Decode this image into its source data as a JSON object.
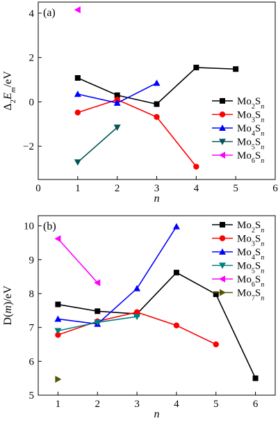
{
  "chart_data": [
    {
      "type": "line",
      "panel_label": "(a)",
      "ylabel": {
        "pre": "Δ",
        "sub1": "2",
        "mid": "E",
        "sub2": "m",
        "post": "/eV"
      },
      "xlabel": "n",
      "xlim": [
        0,
        6
      ],
      "ylim": [
        -3.5,
        4.5
      ],
      "xticks": [
        0,
        1,
        2,
        3,
        4,
        5,
        6
      ],
      "yticks": [
        -2,
        0,
        2,
        4
      ],
      "xtick_labels": [
        "0",
        "1",
        "2",
        "3",
        "4",
        "5",
        "6"
      ],
      "ytick_labels": [
        "−2",
        "0",
        "2",
        "4"
      ],
      "legend_placement": "center-right",
      "series": [
        {
          "name": "Mo2Sn",
          "color": "#000000",
          "marker": "square",
          "x": [
            1,
            2,
            3,
            4,
            5
          ],
          "y": [
            1.08,
            0.3,
            -0.1,
            1.55,
            1.48
          ]
        },
        {
          "name": "Mo3Sn",
          "color": "#ff0000",
          "marker": "circle",
          "x": [
            1,
            2,
            3,
            4
          ],
          "y": [
            -0.48,
            0.1,
            -0.68,
            -2.92
          ]
        },
        {
          "name": "Mo4Sn",
          "color": "#0000ff",
          "marker": "triangle-up",
          "x": [
            1,
            2,
            3
          ],
          "y": [
            0.35,
            -0.05,
            0.85
          ]
        },
        {
          "name": "Mo5Sn",
          "color": "#005555",
          "marker": "triangle-down",
          "x": [
            1,
            2
          ],
          "y": [
            -2.72,
            -1.15
          ]
        },
        {
          "name": "Mo6Sn",
          "color": "#ff00ff",
          "marker": "triangle-left",
          "x": [
            1
          ],
          "y": [
            4.15
          ]
        }
      ],
      "legend": [
        {
          "base": "Mo",
          "sub": "2",
          "mid": "S",
          "sub2": "n"
        },
        {
          "base": "Mo",
          "sub": "3",
          "mid": "S",
          "sub2": "n"
        },
        {
          "base": "Mo",
          "sub": "4",
          "mid": "S",
          "sub2": "n"
        },
        {
          "base": "Mo",
          "sub": "5",
          "mid": "S",
          "sub2": "n"
        },
        {
          "base": "Mo",
          "sub": "6",
          "mid": "S",
          "sub2": "n"
        }
      ]
    },
    {
      "type": "line",
      "panel_label": "(b)",
      "ylabel": {
        "pre": "D(",
        "mid": "m",
        "post": ")/eV"
      },
      "xlabel": "n",
      "xlim": [
        0.5,
        6.5
      ],
      "ylim": [
        5,
        10.3
      ],
      "xticks": [
        1,
        2,
        3,
        4,
        5,
        6
      ],
      "yticks": [
        5,
        6,
        7,
        8,
        9,
        10
      ],
      "xtick_labels": [
        "1",
        "2",
        "3",
        "4",
        "5",
        "6"
      ],
      "ytick_labels": [
        "5",
        "6",
        "7",
        "8",
        "9",
        "10"
      ],
      "legend_placement": "top-right",
      "series": [
        {
          "name": "Mo2Sn",
          "color": "#000000",
          "marker": "square",
          "x": [
            1,
            2,
            3,
            4,
            5,
            6
          ],
          "y": [
            7.68,
            7.48,
            7.4,
            8.62,
            7.98,
            5.5
          ]
        },
        {
          "name": "Mo3Sn",
          "color": "#ff0000",
          "marker": "circle",
          "x": [
            1,
            2,
            3,
            4,
            5
          ],
          "y": [
            6.78,
            7.18,
            7.45,
            7.06,
            6.5
          ]
        },
        {
          "name": "Mo4Sn",
          "color": "#0000ff",
          "marker": "triangle-up",
          "x": [
            1,
            2,
            3,
            4
          ],
          "y": [
            7.25,
            7.1,
            8.15,
            9.98
          ]
        },
        {
          "name": "Mo5Sn",
          "color": "#008080",
          "marker": "triangle-down",
          "x": [
            1,
            2,
            3
          ],
          "y": [
            6.9,
            7.15,
            7.32
          ]
        },
        {
          "name": "Mo6Sn",
          "color": "#ff00ff",
          "marker": "triangle-left",
          "x": [
            1,
            2
          ],
          "y": [
            9.62,
            8.32
          ]
        },
        {
          "name": "Mo7Sn",
          "color": "#555500",
          "marker": "triangle-right",
          "x": [
            1
          ],
          "y": [
            5.47
          ]
        }
      ],
      "legend": [
        {
          "base": "Mo",
          "sub": "2",
          "mid": "S",
          "sub2": "n"
        },
        {
          "base": "Mo",
          "sub": "3",
          "mid": "S",
          "sub2": "n"
        },
        {
          "base": "Mo",
          "sub": "4",
          "mid": "S",
          "sub2": "n"
        },
        {
          "base": "Mo",
          "sub": "5",
          "mid": "S",
          "sub2": "n"
        },
        {
          "base": "Mo",
          "sub": "6",
          "mid": "S",
          "sub2": "n"
        },
        {
          "base": "Mo",
          "sub": "7",
          "mid": "S",
          "sub2": "n"
        }
      ]
    }
  ]
}
